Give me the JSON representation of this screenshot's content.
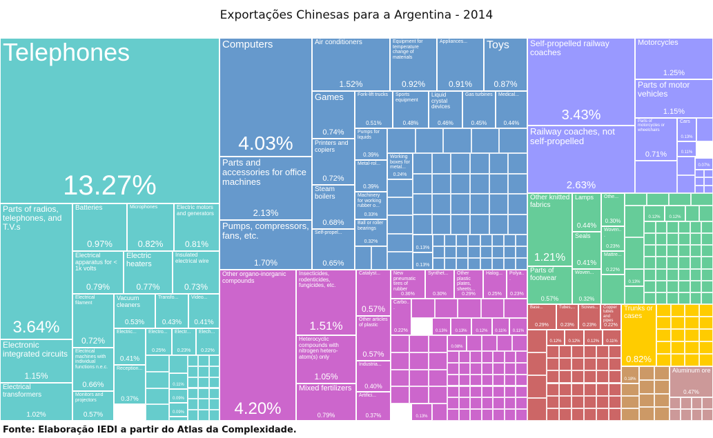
{
  "title": "Exportações Chinesas para a Argentina - 2014",
  "source": "Fonte: Elaboração IEDI a partir do Atlas da Complexidade.",
  "chart_data": {
    "type": "treemap",
    "title": "Exportações Chinesas para a Argentina - 2014",
    "unit": "%",
    "groups": {
      "electronics": "#66cccc",
      "machinery": "#6699cc",
      "chemicals_plastics": "#cc66cc",
      "transportation": "#9999ff",
      "textiles_other": "#66cc99",
      "metals": "#cc6666",
      "yellow_group": "#ffcc00",
      "tan_group": "#cc9966",
      "minerals": "#cc9999"
    },
    "items": [
      {
        "label": "Telephones",
        "value": 13.27,
        "group": "electronics"
      },
      {
        "label": "Parts of radios, telephones, and T.V.s",
        "value": 3.64,
        "group": "electronics"
      },
      {
        "label": "Electronic integrated circuits",
        "value": 1.15,
        "group": "electronics"
      },
      {
        "label": "Electrical transformers",
        "value": 1.02,
        "group": "electronics"
      },
      {
        "label": "Batteries",
        "value": 0.97,
        "group": "electronics"
      },
      {
        "label": "Microphones",
        "value": 0.82,
        "group": "electronics"
      },
      {
        "label": "Electric motors and generators",
        "value": 0.81,
        "group": "electronics"
      },
      {
        "label": "Electrical apparatus for < 1k volts",
        "value": 0.79,
        "group": "electronics"
      },
      {
        "label": "Electric heaters",
        "value": 0.77,
        "group": "electronics"
      },
      {
        "label": "Insulated electrical wire",
        "value": 0.73,
        "group": "electronics"
      },
      {
        "label": "Electrical filament",
        "value": 0.72,
        "group": "electronics"
      },
      {
        "label": "Vacuum cleaners",
        "value": 0.53,
        "group": "electronics"
      },
      {
        "label": "Transfo...",
        "value": 0.43,
        "group": "electronics"
      },
      {
        "label": "Video...",
        "value": 0.41,
        "group": "electronics"
      },
      {
        "label": "Electrical machines with individual functions n.e.c.",
        "value": 0.66,
        "group": "electronics"
      },
      {
        "label": "Monitors and projectors",
        "value": 0.57,
        "group": "electronics"
      },
      {
        "label": "Electric...",
        "value": 0.41,
        "group": "electronics"
      },
      {
        "label": "Reception...",
        "value": 0.37,
        "group": "electronics"
      },
      {
        "label": "Electro...",
        "value": 0.25,
        "group": "electronics"
      },
      {
        "label": "Electr...",
        "value": 0.23,
        "group": "electronics"
      },
      {
        "label": "Elech...",
        "value": 0.22,
        "group": "electronics"
      },
      {
        "label": "",
        "value": 0.11,
        "group": "electronics"
      },
      {
        "label": "",
        "value": 0.09,
        "group": "electronics"
      },
      {
        "label": "",
        "value": 0.09,
        "group": "electronics"
      },
      {
        "label": "Computers",
        "value": 4.03,
        "group": "machinery"
      },
      {
        "label": "Parts and accessories for office machines",
        "value": 2.13,
        "group": "machinery"
      },
      {
        "label": "Pumps, compressors, fans, etc.",
        "value": 1.7,
        "group": "machinery"
      },
      {
        "label": "Air conditioners",
        "value": 1.52,
        "group": "machinery"
      },
      {
        "label": "Equipment for temperature change of materials",
        "value": 0.92,
        "group": "machinery"
      },
      {
        "label": "Appliances...",
        "value": 0.91,
        "group": "machinery"
      },
      {
        "label": "Toys",
        "value": 0.87,
        "group": "machinery"
      },
      {
        "label": "Games",
        "value": 0.74,
        "group": "machinery"
      },
      {
        "label": "Printers and copiers",
        "value": 0.72,
        "group": "machinery"
      },
      {
        "label": "Steam boilers",
        "value": 0.68,
        "group": "machinery"
      },
      {
        "label": "Self-propel...",
        "value": 0.65,
        "group": "machinery"
      },
      {
        "label": "Fork-lift trucks",
        "value": 0.51,
        "group": "machinery"
      },
      {
        "label": "Sports equipment",
        "value": 0.48,
        "group": "machinery"
      },
      {
        "label": "Liquid crystal devices",
        "value": 0.46,
        "group": "machinery"
      },
      {
        "label": "Gas turbines",
        "value": 0.45,
        "group": "machinery"
      },
      {
        "label": "Medical...",
        "value": 0.44,
        "group": "machinery"
      },
      {
        "label": "Pumps for liquids",
        "value": 0.39,
        "group": "machinery"
      },
      {
        "label": "Metal-rol...",
        "value": 0.39,
        "group": "machinery"
      },
      {
        "label": "Machinery for working rubber o...",
        "value": 0.33,
        "group": "machinery"
      },
      {
        "label": "Ball or roller bearings",
        "value": 0.32,
        "group": "machinery"
      },
      {
        "label": "Working boxes for metal...",
        "value": 0.24,
        "group": "machinery"
      },
      {
        "label": "",
        "value": 0.13,
        "group": "machinery"
      },
      {
        "label": "",
        "value": 0.13,
        "group": "machinery"
      },
      {
        "label": "Other organo-inorganic compounds",
        "value": 4.2,
        "group": "chemicals_plastics"
      },
      {
        "label": "Insecticides, rodenticides, fungicides, etc.",
        "value": 1.51,
        "group": "chemicals_plastics"
      },
      {
        "label": "Heterocyclic compounds with nitrogen hetero-atom(s) only",
        "value": 1.05,
        "group": "chemicals_plastics"
      },
      {
        "label": "Mixed fertilizers",
        "value": 0.79,
        "group": "chemicals_plastics"
      },
      {
        "label": "Catalyst...",
        "value": 0.57,
        "group": "chemicals_plastics"
      },
      {
        "label": "Other articles of plastic",
        "value": 0.57,
        "group": "chemicals_plastics"
      },
      {
        "label": "Industria...",
        "value": 0.4,
        "group": "chemicals_plastics"
      },
      {
        "label": "Artifici...",
        "value": 0.37,
        "group": "chemicals_plastics"
      },
      {
        "label": "New pneumatic tires of rubber",
        "value": 0.36,
        "group": "chemicals_plastics"
      },
      {
        "label": "Synthet...",
        "value": 0.3,
        "group": "chemicals_plastics"
      },
      {
        "label": "Other plastic plates, sheets...",
        "value": 0.29,
        "group": "chemicals_plastics"
      },
      {
        "label": "Halog...",
        "value": 0.25,
        "group": "chemicals_plastics"
      },
      {
        "label": "Polya...",
        "value": 0.23,
        "group": "chemicals_plastics"
      },
      {
        "label": "Carbo...",
        "value": 0.22,
        "group": "chemicals_plastics"
      },
      {
        "label": "",
        "value": 0.13,
        "group": "chemicals_plastics"
      },
      {
        "label": "",
        "value": 0.13,
        "group": "chemicals_plastics"
      },
      {
        "label": "",
        "value": 0.12,
        "group": "chemicals_plastics"
      },
      {
        "label": "",
        "value": 0.11,
        "group": "chemicals_plastics"
      },
      {
        "label": "",
        "value": 0.11,
        "group": "chemicals_plastics"
      },
      {
        "label": "",
        "value": 0.08,
        "group": "chemicals_plastics"
      },
      {
        "label": "",
        "value": 0.13,
        "group": "chemicals_plastics"
      },
      {
        "label": "Self-propelled railway coaches",
        "value": 3.43,
        "group": "transportation"
      },
      {
        "label": "Railway coaches, not self-propelled",
        "value": 2.63,
        "group": "transportation"
      },
      {
        "label": "Motorcycles",
        "value": 1.25,
        "group": "transportation"
      },
      {
        "label": "Parts of motor vehicles",
        "value": 1.15,
        "group": "transportation"
      },
      {
        "label": "Parts of motorcycles or wheelchairs",
        "value": 0.71,
        "group": "transportation"
      },
      {
        "label": "Cars",
        "value": 0.13,
        "group": "transportation"
      },
      {
        "label": "",
        "value": 0.11,
        "group": "transportation"
      },
      {
        "label": "",
        "value": 0.07,
        "group": "transportation"
      },
      {
        "label": "Other knitted fabrics",
        "value": 1.21,
        "group": "textiles_other"
      },
      {
        "label": "Parts of footwear",
        "value": 0.57,
        "group": "textiles_other"
      },
      {
        "label": "Lamps",
        "value": 0.44,
        "group": "textiles_other"
      },
      {
        "label": "Seals",
        "value": 0.41,
        "group": "textiles_other"
      },
      {
        "label": "Woven...",
        "value": 0.32,
        "group": "textiles_other"
      },
      {
        "label": "Othe...",
        "value": 0.3,
        "group": "textiles_other"
      },
      {
        "label": "Woven...",
        "value": 0.23,
        "group": "textiles_other"
      },
      {
        "label": "Mattre...",
        "value": 0.22,
        "group": "textiles_other"
      },
      {
        "label": "",
        "value": 0.12,
        "group": "textiles_other"
      },
      {
        "label": "",
        "value": 0.12,
        "group": "textiles_other"
      },
      {
        "label": "",
        "value": 0.13,
        "group": "textiles_other"
      },
      {
        "label": "Base...",
        "value": 0.29,
        "group": "metals"
      },
      {
        "label": "Tubes,...",
        "value": 0.23,
        "group": "metals"
      },
      {
        "label": "Screws...",
        "value": 0.23,
        "group": "metals"
      },
      {
        "label": "Copper tubes and pipes",
        "value": 0.22,
        "group": "metals"
      },
      {
        "label": "",
        "value": 0.12,
        "group": "metals"
      },
      {
        "label": "",
        "value": 0.12,
        "group": "metals"
      },
      {
        "label": "",
        "value": 0.12,
        "group": "metals"
      },
      {
        "label": "",
        "value": 0.11,
        "group": "metals"
      },
      {
        "label": "Trunks or cases",
        "value": 0.82,
        "group": "yellow_group"
      },
      {
        "label": "",
        "value": 0.18,
        "group": "tan_group"
      },
      {
        "label": "Aluminum ore",
        "value": 0.47,
        "group": "minerals"
      }
    ]
  }
}
